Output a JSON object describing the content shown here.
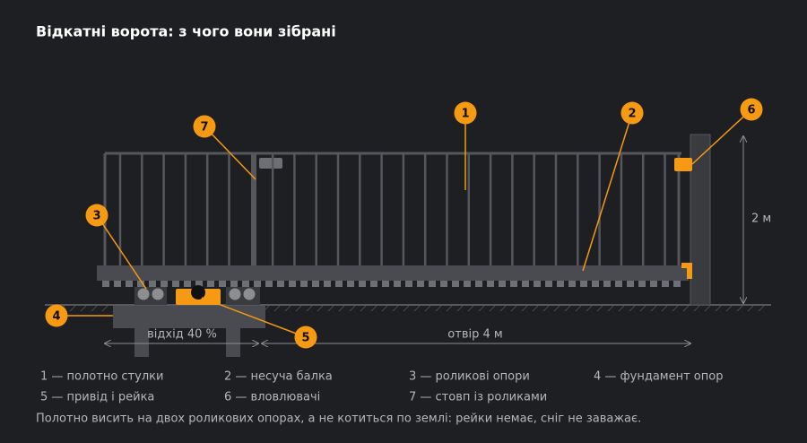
{
  "title": "Відкатні ворота: з чого вони зібрані",
  "callouts": [
    "1",
    "2",
    "3",
    "4",
    "5",
    "6",
    "7"
  ],
  "dimensions": {
    "height": "2 м",
    "offset": "відхід 40 %",
    "opening": "отвір 4 м"
  },
  "legend": [
    "1 — полотно стулки",
    "2 — несуча балка",
    "3 — роликові опори",
    "4 — фундамент опор",
    "5 — привід і рейка",
    "6 — вловлювачі",
    "7 — стовп із роликами"
  ],
  "note": "Полотно висить на двох роликових опорах, а не котиться по землі: рейки немає, сніг не заважає."
}
